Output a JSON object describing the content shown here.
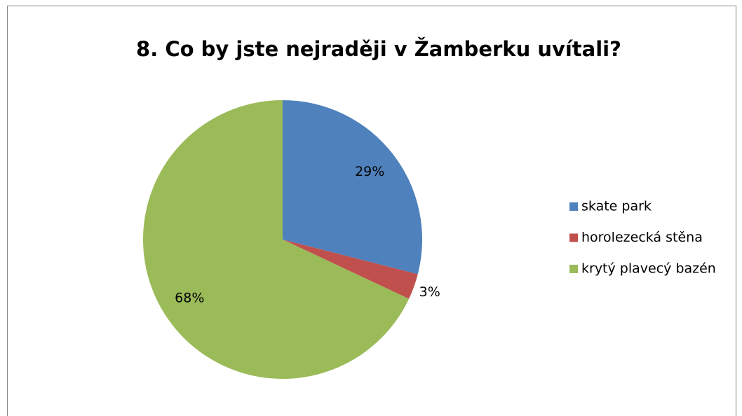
{
  "chart_data": {
    "type": "pie",
    "title": "8. Co by jste nejraději v Žamberku uvítali?",
    "categories": [
      "skate park",
      "horolezecká stěna",
      "krytý plavecý bazén"
    ],
    "values": [
      29,
      3,
      68
    ],
    "value_labels": [
      "29%",
      "3%",
      "68%"
    ],
    "colors": [
      "#4f81bd",
      "#c0504d",
      "#9bbb59"
    ],
    "legend": "right"
  }
}
